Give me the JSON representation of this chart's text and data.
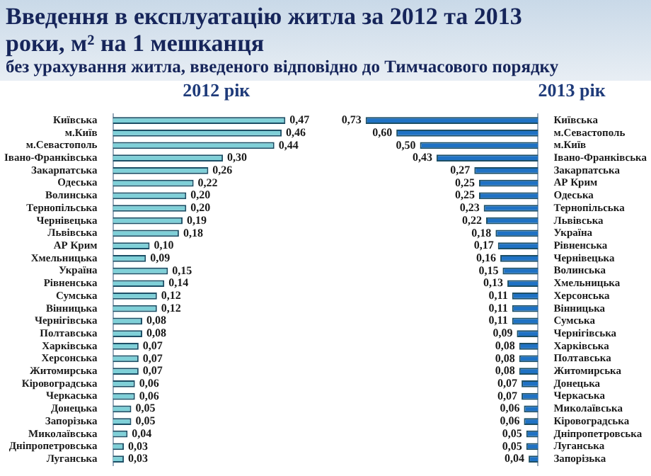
{
  "chart_data": [
    {
      "type": "bar",
      "orientation": "horizontal",
      "title": "Введення в експлуатацію житла за 2012 та 2013 роки, м² на 1 мешканця",
      "subtitle": "без урахування житла, введеного відповідно до Тимчасового порядку",
      "xlabel": "2012 рік",
      "categories": [
        "Київська",
        "м.Київ",
        "м.Севастополь",
        "Івано-Франківська",
        "Закарпатська",
        "Одеська",
        "Волинська",
        "Тернопільська",
        "Чернівецька",
        "Львівська",
        "АР Крим",
        "Хмельницька",
        "Україна",
        "Рівненська",
        "Сумська",
        "Вінницька",
        "Чернігівська",
        "Полтавська",
        "Харківська",
        "Херсонська",
        "Житомирська",
        "Кіровоградська",
        "Черкаська",
        "Донецька",
        "Запорізька",
        "Миколаївська",
        "Дніпропетровська",
        "Луганська"
      ],
      "values": [
        0.47,
        0.46,
        0.44,
        0.3,
        0.26,
        0.22,
        0.2,
        0.2,
        0.19,
        0.18,
        0.1,
        0.09,
        0.15,
        0.14,
        0.12,
        0.12,
        0.08,
        0.08,
        0.07,
        0.07,
        0.07,
        0.06,
        0.06,
        0.05,
        0.05,
        0.04,
        0.03,
        0.03
      ],
      "value_labels": [
        "0,47",
        "0,46",
        "0,44",
        "0,30",
        "0,26",
        "0,22",
        "0,20",
        "0,20",
        "0,19",
        "0,18",
        "0,10",
        "0,09",
        "0,15",
        "0,14",
        "0,12",
        "0,12",
        "0,08",
        "0,08",
        "0,07",
        "0,07",
        "0,07",
        "0,06",
        "0,06",
        "0,05",
        "0,05",
        "0,04",
        "0,03",
        "0,03"
      ],
      "color": "#7fd0d8"
    },
    {
      "type": "bar",
      "orientation": "horizontal",
      "xlabel": "2013 рік",
      "categories": [
        "Київська",
        "м.Севастополь",
        "м.Київ",
        "Івано-Франківська",
        "Закарпатська",
        "АР Крим",
        "Одеська",
        "Тернопільська",
        "Львівська",
        "Україна",
        "Рівненська",
        "Чернівецька",
        "Волинська",
        "Хмельницька",
        "Херсонська",
        "Вінницька",
        "Сумська",
        "Чернігівська",
        "Харківська",
        "Полтавська",
        "Житомирська",
        "Донецька",
        "Черкаська",
        "Миколаївська",
        "Кіровоградська",
        "Дніпропетровська",
        "Луганська",
        "Запорізька"
      ],
      "values": [
        0.73,
        0.6,
        0.5,
        0.43,
        0.27,
        0.25,
        0.25,
        0.23,
        0.22,
        0.18,
        0.17,
        0.16,
        0.15,
        0.13,
        0.11,
        0.11,
        0.11,
        0.09,
        0.08,
        0.08,
        0.08,
        0.07,
        0.07,
        0.06,
        0.06,
        0.05,
        0.05,
        0.04
      ],
      "value_labels": [
        "0,73",
        "0,60",
        "0,50",
        "0,43",
        "0,27",
        "0,25",
        "0,25",
        "0,23",
        "0,22",
        "0,18",
        "0,17",
        "0,16",
        "0,15",
        "0,13",
        "0,11",
        "0,11",
        "0,11",
        "0,09",
        "0,08",
        "0,08",
        "0,08",
        "0,07",
        "0,07",
        "0,06",
        "0,06",
        "0,05",
        "0,05",
        "0,04"
      ],
      "color": "#1f72c4"
    }
  ]
}
